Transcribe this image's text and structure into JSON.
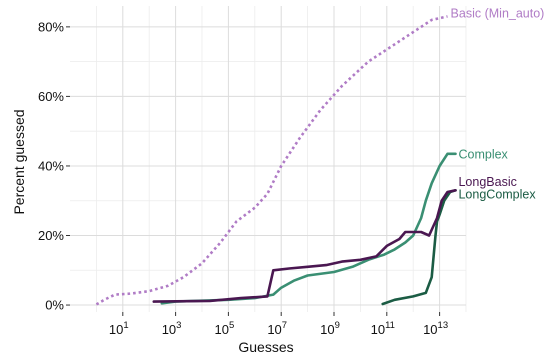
{
  "chart_data": {
    "type": "line",
    "xlabel": "Guesses",
    "ylabel": "Percent guessed",
    "x_scale": "log10",
    "xlim": [
      0.1,
      100000000000000
    ],
    "ylim": [
      -2,
      86
    ],
    "grid": true,
    "x_ticks": [
      {
        "value": 10,
        "base": "10",
        "exp": "1"
      },
      {
        "value": 1000,
        "base": "10",
        "exp": "3"
      },
      {
        "value": 100000,
        "base": "10",
        "exp": "5"
      },
      {
        "value": 10000000,
        "base": "10",
        "exp": "7"
      },
      {
        "value": 1000000000,
        "base": "10",
        "exp": "9"
      },
      {
        "value": 100000000000,
        "base": "10",
        "exp": "11"
      },
      {
        "value": 10000000000000,
        "base": "10",
        "exp": "13"
      }
    ],
    "y_ticks": [
      {
        "value": 0,
        "label": "0%"
      },
      {
        "value": 20,
        "label": "20%"
      },
      {
        "value": 40,
        "label": "40%"
      },
      {
        "value": 60,
        "label": "60%"
      },
      {
        "value": 80,
        "label": "80%"
      }
    ],
    "series": [
      {
        "name": "Basic (Min_auto)",
        "color": "#b07cc6",
        "dashed": true,
        "label_y": 84,
        "points": [
          [
            1,
            0.2
          ],
          [
            2,
            1.5
          ],
          [
            5,
            3
          ],
          [
            20,
            3.3
          ],
          [
            100,
            4
          ],
          [
            500,
            5.5
          ],
          [
            2000,
            8
          ],
          [
            10000,
            12
          ],
          [
            50000,
            18
          ],
          [
            200000,
            24
          ],
          [
            1000000,
            28
          ],
          [
            3000000,
            32
          ],
          [
            10000000,
            40
          ],
          [
            50000000,
            48
          ],
          [
            300000000,
            56
          ],
          [
            2000000000,
            63
          ],
          [
            20000000000,
            70
          ],
          [
            200000000000,
            75
          ],
          [
            2000000000000,
            80
          ],
          [
            5000000000000,
            82
          ],
          [
            20000000000000,
            83
          ]
        ]
      },
      {
        "name": "Complex",
        "color": "#3a8f73",
        "dashed": false,
        "label_y": 43.5,
        "points": [
          [
            300,
            0.5
          ],
          [
            1000,
            1
          ],
          [
            100000,
            1.5
          ],
          [
            1000000,
            2
          ],
          [
            5000000,
            3
          ],
          [
            10000000,
            5
          ],
          [
            30000000,
            7
          ],
          [
            100000000,
            8.5
          ],
          [
            1000000000,
            9.5
          ],
          [
            5000000000,
            11
          ],
          [
            20000000000,
            13
          ],
          [
            80000000000,
            14.5
          ],
          [
            200000000000,
            16
          ],
          [
            500000000000,
            18
          ],
          [
            1000000000000,
            20
          ],
          [
            2000000000000,
            25
          ],
          [
            3000000000000,
            30
          ],
          [
            5000000000000,
            35
          ],
          [
            10000000000000,
            40
          ],
          [
            20000000000000,
            43.5
          ],
          [
            40000000000000,
            43.5
          ]
        ]
      },
      {
        "name": "LongBasic",
        "color": "#4a1751",
        "dashed": false,
        "label_y": 35.5,
        "points": [
          [
            150,
            1
          ],
          [
            20000,
            1.2
          ],
          [
            300000,
            2
          ],
          [
            3000000,
            2.5
          ],
          [
            5000000,
            10
          ],
          [
            20000000,
            10.5
          ],
          [
            100000000,
            11
          ],
          [
            500000000,
            11.5
          ],
          [
            2000000000,
            12.5
          ],
          [
            10000000000,
            13
          ],
          [
            40000000000,
            14
          ],
          [
            100000000000,
            17
          ],
          [
            300000000000,
            19
          ],
          [
            500000000000,
            21
          ],
          [
            2000000000000,
            21
          ],
          [
            4000000000000,
            20
          ],
          [
            8000000000000,
            25
          ],
          [
            12000000000000,
            30
          ],
          [
            20000000000000,
            32.5
          ],
          [
            40000000000000,
            33
          ]
        ]
      },
      {
        "name": "LongComplex",
        "color": "#1b5c44",
        "dashed": false,
        "label_y": 32,
        "points": [
          [
            70000000000,
            0.3
          ],
          [
            200000000000,
            1.5
          ],
          [
            1000000000000,
            2.5
          ],
          [
            3000000000000,
            3.5
          ],
          [
            5000000000000,
            8
          ],
          [
            7000000000000,
            20
          ],
          [
            8000000000000,
            24
          ],
          [
            10000000000000,
            26
          ],
          [
            15000000000000,
            30
          ],
          [
            25000000000000,
            32.5
          ],
          [
            40000000000000,
            33
          ]
        ]
      }
    ]
  }
}
